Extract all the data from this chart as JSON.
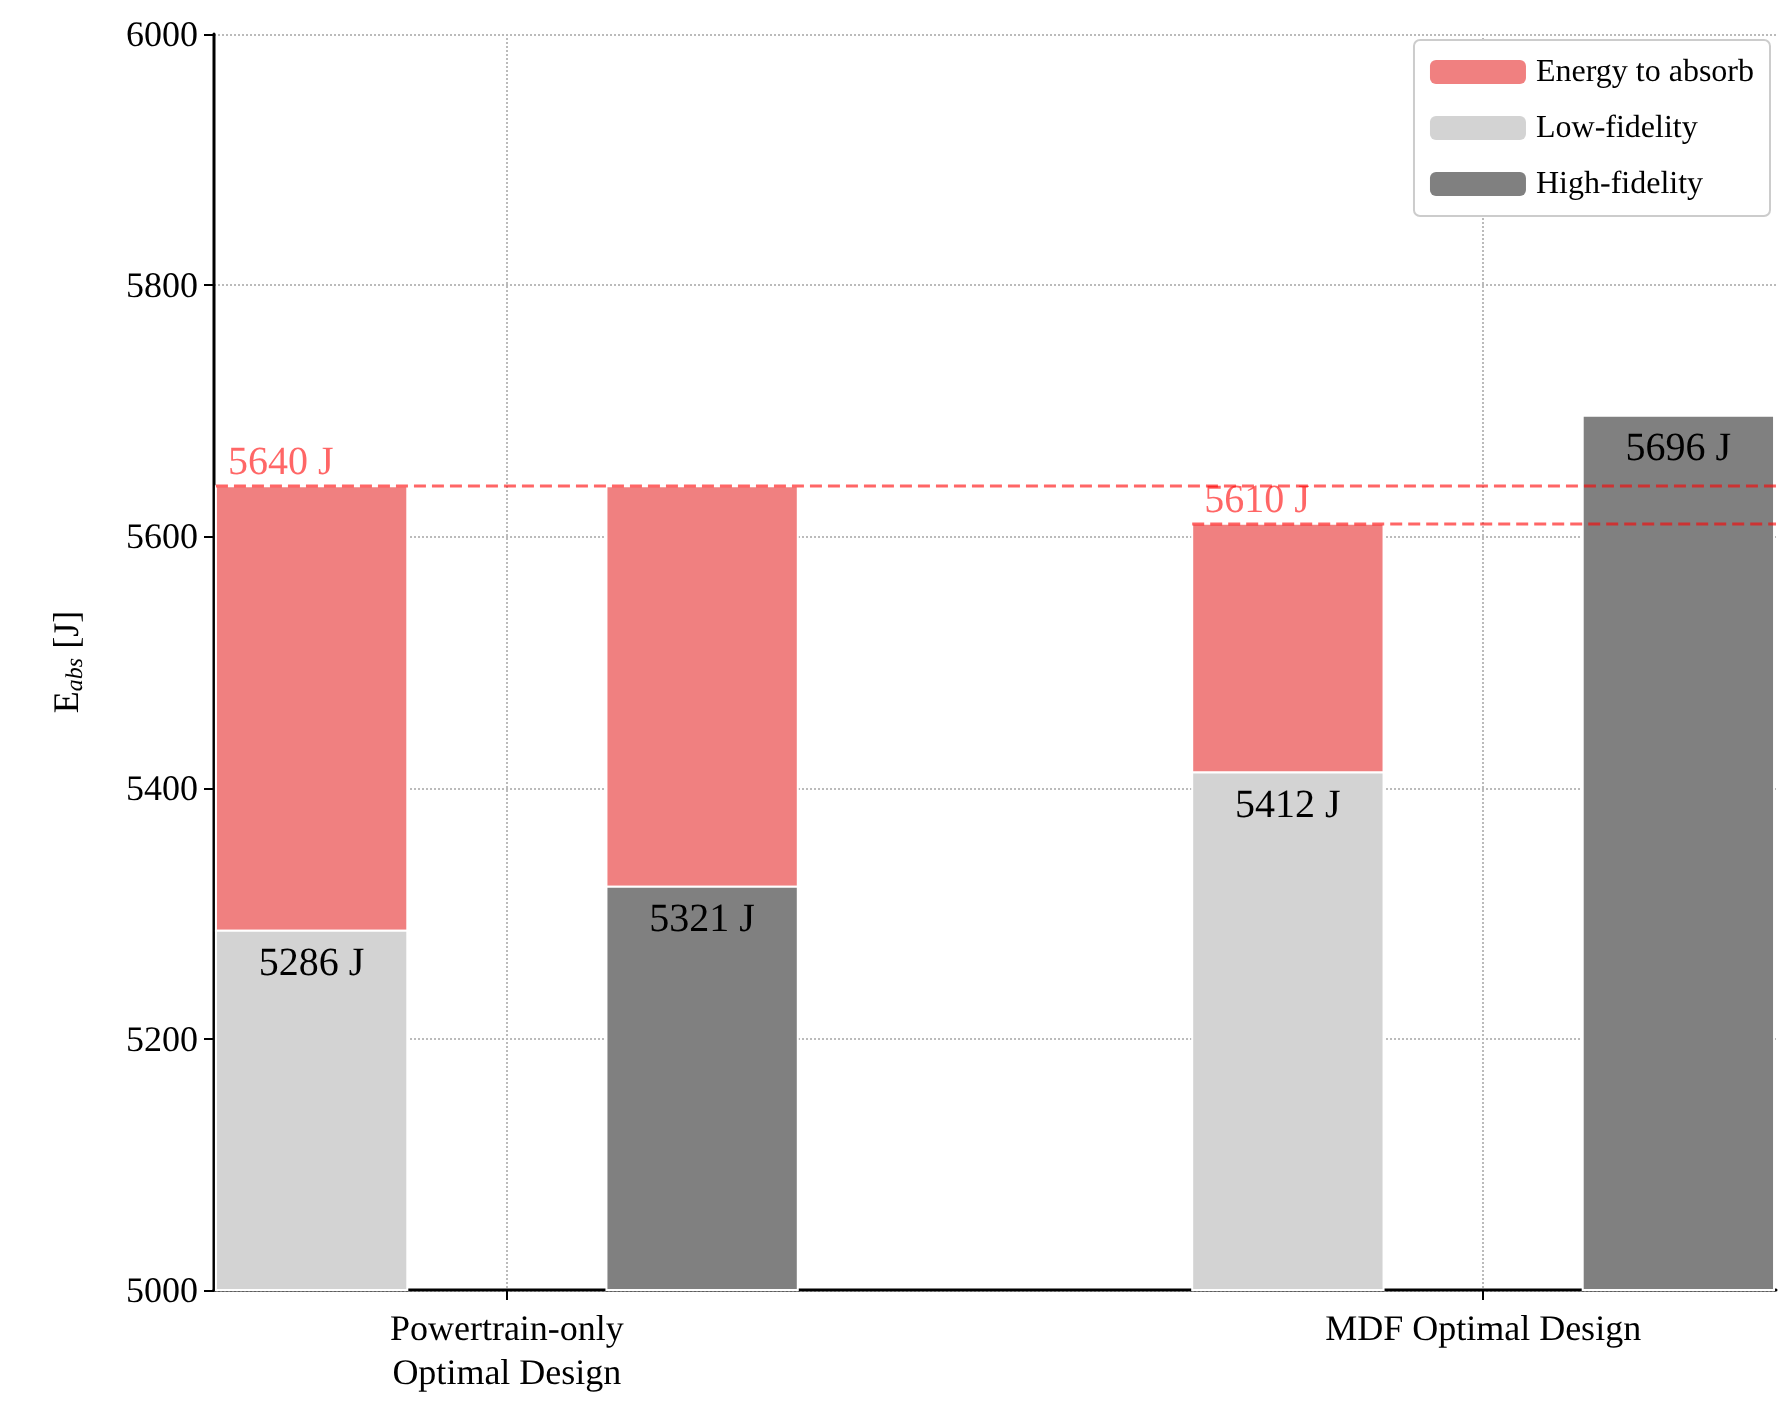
{
  "chart_data": {
    "type": "bar",
    "ylabel": "E$_{abs}$ [J]",
    "categories": [
      null,
      "Powertrain-only\nOptimal Design",
      null,
      null,
      null,
      null,
      "MDF Optimal Design",
      null
    ],
    "series": [
      {
        "name": "Energy to absorb",
        "color": "#f08080",
        "base": [
          5286,
          null,
          5321,
          null,
          null,
          5412,
          null,
          null
        ],
        "values": [
          354,
          null,
          319,
          null,
          null,
          198,
          null,
          null
        ]
      },
      {
        "name": "Low-fidelity",
        "color": "#d3d3d3",
        "values": [
          5286,
          null,
          null,
          null,
          null,
          5412,
          null,
          null
        ],
        "value_labels": [
          "5286 J",
          null,
          null,
          null,
          null,
          "5412 J",
          null,
          null
        ]
      },
      {
        "name": "High-fidelity",
        "color": "#808080",
        "values": [
          null,
          null,
          5321,
          null,
          null,
          null,
          null,
          5696
        ],
        "value_labels": [
          null,
          null,
          "5321 J",
          null,
          null,
          null,
          null,
          "5696 J"
        ]
      }
    ],
    "ylim": [
      5000,
      6000
    ],
    "yticks": [
      5000,
      5200,
      5400,
      5600,
      5800,
      6000
    ],
    "ref_lines": [
      {
        "axis": "y",
        "value": 5640,
        "label": "5640 J",
        "color": "#ff0000",
        "line_style": "dashed"
      },
      {
        "axis": "y",
        "value": 5610,
        "label": "5610 J",
        "color": "#ff0000",
        "line_style": "dashed"
      }
    ],
    "grid": true,
    "legend": "top right"
  }
}
